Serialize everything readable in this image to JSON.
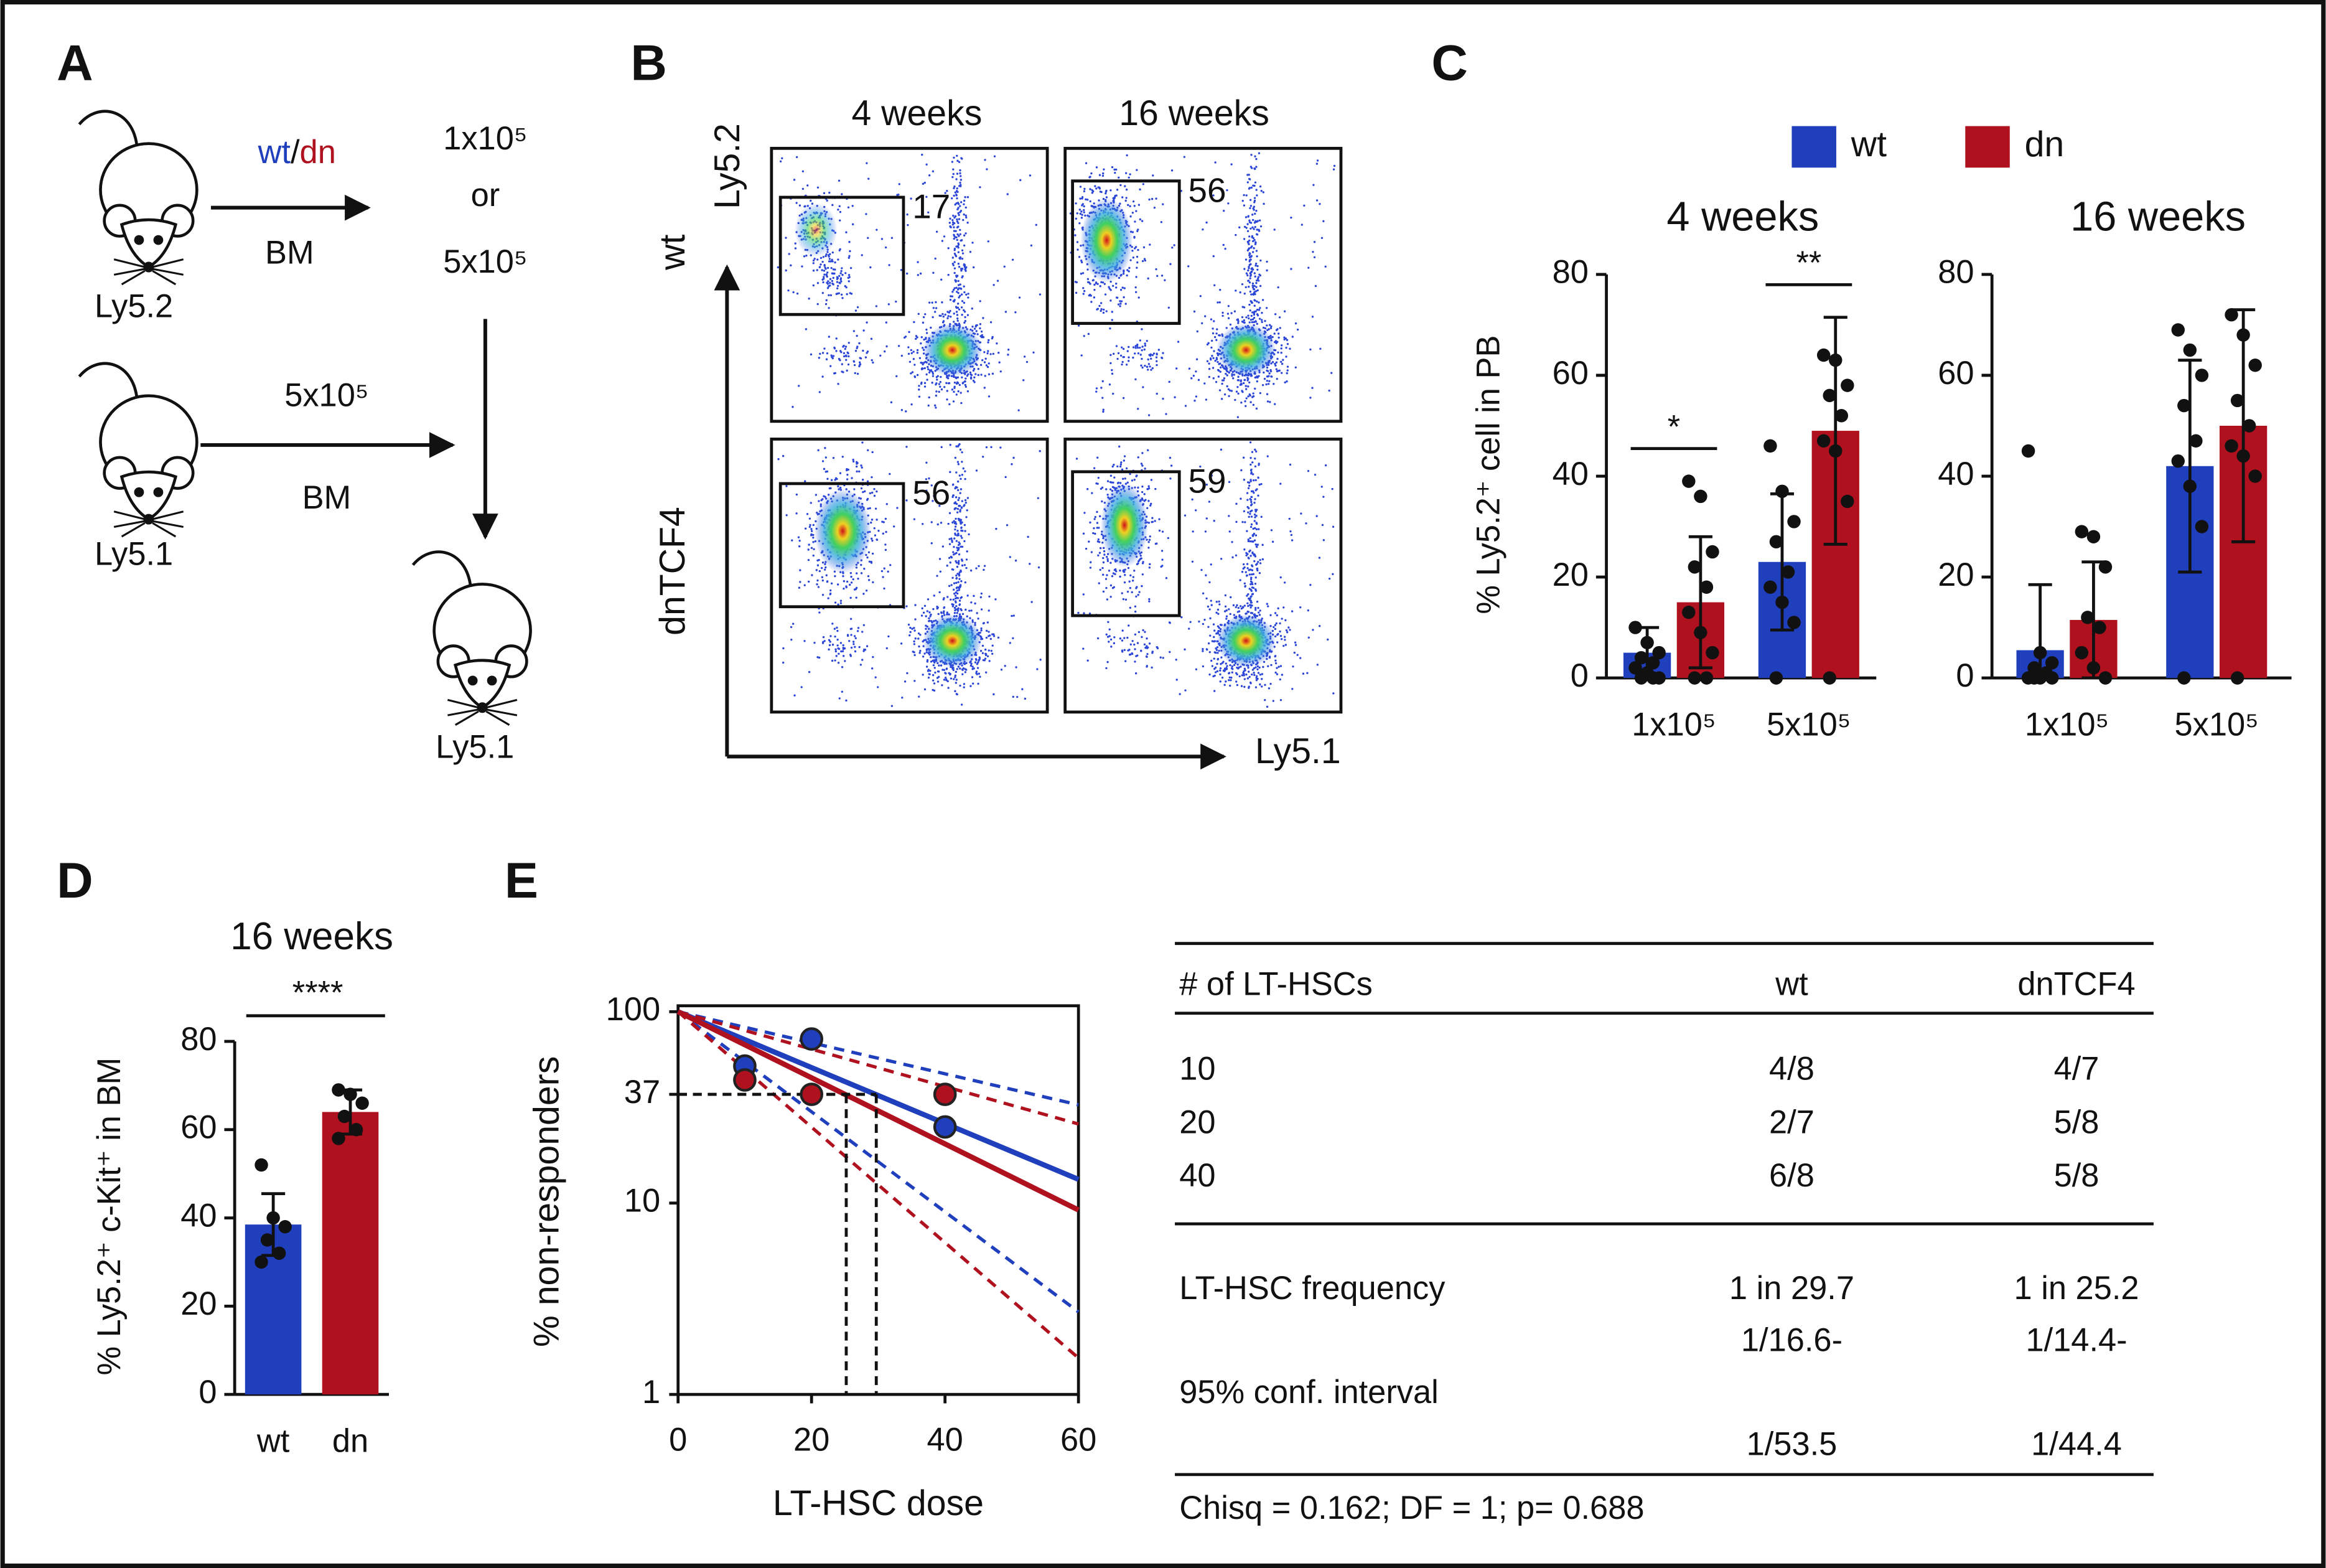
{
  "panels": {
    "A": {
      "label": "A",
      "donor_top": {
        "strain": "Ly5.2",
        "wt": "wt",
        "slash": "/",
        "dn": "dn",
        "source": "BM"
      },
      "dose_top": [
        "1x10⁵",
        "or",
        "5x10⁵"
      ],
      "donor_bottom": {
        "strain": "Ly5.1",
        "dose": "5x10⁵",
        "source": "BM"
      },
      "recipient": "Ly5.1"
    },
    "B": {
      "label": "B",
      "columns": [
        "4 weeks",
        "16 weeks"
      ],
      "rows": [
        "wt",
        "dnTCF4"
      ],
      "y_axis": "Ly5.2",
      "x_axis": "Ly5.1",
      "gates": [
        [
          17,
          56
        ],
        [
          56,
          59
        ]
      ]
    },
    "C": {
      "label": "C"
    },
    "D": {
      "label": "D"
    },
    "E": {
      "label": "E",
      "table": {
        "columns": [
          "# of LT-HSCs",
          "wt",
          "dnTCF4"
        ],
        "rows": [
          [
            "10",
            "4/8",
            "4/7"
          ],
          [
            "20",
            "2/7",
            "5/8"
          ],
          [
            "40",
            "6/8",
            "5/8"
          ]
        ],
        "frequency": [
          "LT-HSC frequency",
          "1 in 29.7",
          "1 in 25.2"
        ],
        "interval": {
          "label": "95% conf. interval",
          "wt": [
            "1/16.6-",
            "1/53.5"
          ],
          "dnTCF4": [
            "1/14.4-",
            "1/44.4"
          ]
        },
        "footer": "Chisq = 0.162; DF = 1; p= 0.688"
      }
    }
  },
  "chart_data": [
    {
      "type": "bar",
      "title": "4 weeks",
      "y_label": "% Ly5.2⁺ cell in PB",
      "categories": [
        "1x10⁵",
        "5x10⁵"
      ],
      "series": [
        {
          "name": "wt",
          "color": "#1f3fbd",
          "values": [
            5,
            23
          ],
          "errors": [
            5,
            13.5
          ],
          "points": [
            [
              10,
              7,
              5,
              4,
              3,
              2,
              1,
              0,
              0,
              0
            ],
            [
              46,
              37,
              31,
              27,
              21,
              18,
              15,
              11,
              0
            ]
          ]
        },
        {
          "name": "dn",
          "color": "#b0111e",
          "values": [
            15,
            49
          ],
          "errors": [
            13,
            22.5
          ],
          "points": [
            [
              39,
              36,
              25,
              22,
              18,
              13,
              9,
              5,
              0,
              0
            ],
            [
              64,
              63,
              58,
              56,
              52,
              47,
              45,
              35,
              0
            ]
          ]
        }
      ],
      "ylim": [
        0,
        80
      ],
      "yticks": [
        0,
        20,
        40,
        60,
        80
      ],
      "significance": [
        "*",
        "**"
      ]
    },
    {
      "type": "bar",
      "title": "16 weeks",
      "categories": [
        "1x10⁵",
        "5x10⁵"
      ],
      "series": [
        {
          "color": "#1f3fbd",
          "values": [
            5.5,
            42
          ],
          "errors": [
            13,
            21
          ],
          "points": [
            [
              45,
              5,
              3,
              2,
              1,
              0,
              0,
              0,
              0
            ],
            [
              69,
              65,
              60,
              54,
              47,
              43,
              38,
              30,
              0
            ]
          ]
        },
        {
          "color": "#b0111e",
          "values": [
            11.5,
            50
          ],
          "errors": [
            11.5,
            23
          ],
          "points": [
            [
              29,
              28,
              22,
              12,
              10,
              5,
              2,
              0
            ],
            [
              72,
              68,
              62,
              55,
              50,
              46,
              44,
              40,
              0
            ]
          ]
        }
      ],
      "ylim": [
        0,
        80
      ],
      "yticks": [
        0,
        20,
        40,
        60,
        80
      ]
    },
    {
      "type": "bar",
      "title": "16 weeks",
      "y_label": "% Ly5.2⁺ c-Kit⁺ in BM",
      "categories": [
        "wt",
        "dn"
      ],
      "values": [
        38.5,
        64
      ],
      "colors": [
        "#1f3fbd",
        "#b0111e"
      ],
      "errors": [
        7,
        5
      ],
      "points": [
        [
          52,
          40,
          38,
          35,
          32,
          30
        ],
        [
          69,
          68,
          66,
          63,
          60,
          58
        ]
      ],
      "ylim": [
        0,
        80
      ],
      "yticks": [
        0,
        20,
        40,
        60,
        80
      ],
      "significance": "****"
    },
    {
      "type": "line",
      "log_y": true,
      "x_label": "LT-HSC dose",
      "y_label": "% non-responders",
      "xlim": [
        0,
        60
      ],
      "ylim": [
        1,
        100
      ],
      "xticks": [
        0,
        20,
        40,
        60
      ],
      "yticks": [
        1,
        10,
        37,
        100
      ],
      "x": [
        10,
        20,
        40
      ],
      "fit_x": [
        0,
        60
      ],
      "cutoff": 37,
      "series": [
        {
          "color": "#1f3fbd",
          "values": [
            52,
            72,
            25
          ],
          "fit": [
            100,
            13.3
          ],
          "ci_low": [
            100,
            2.7
          ],
          "ci_high": [
            100,
            32.6
          ],
          "estimate": 29.7
        },
        {
          "color": "#b0111e",
          "values": [
            44,
            37,
            37
          ],
          "fit": [
            100,
            9.2
          ],
          "ci_low": [
            100,
            1.55
          ],
          "ci_high": [
            100,
            25.9
          ],
          "estimate": 25.2
        }
      ]
    }
  ]
}
